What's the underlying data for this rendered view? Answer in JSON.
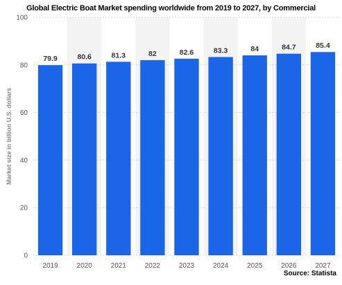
{
  "chart_data": {
    "type": "bar",
    "title": "Global Electric Boat Market spending worldwide from 2019 to 2027, by Commercial",
    "ylabel": "Market size in billion U.S. dollars",
    "xlabel": "",
    "categories": [
      "2019",
      "2020",
      "2021",
      "2022",
      "2023",
      "2024",
      "2025",
      "2026",
      "2027"
    ],
    "values": [
      79.9,
      80.6,
      81.3,
      82,
      82.6,
      83.3,
      84,
      84.7,
      85.4
    ],
    "value_labels": [
      "79.9",
      "80.6",
      "81.3",
      "82",
      "82.6",
      "83.3",
      "84",
      "84.7",
      "85.4"
    ],
    "ylim": [
      0,
      100
    ],
    "yticks": [
      0,
      20,
      40,
      60,
      80,
      100
    ],
    "grid": true,
    "bar_color": "#1a66e6",
    "band_color": "#f3f3f3",
    "source": "Source: Statista"
  }
}
